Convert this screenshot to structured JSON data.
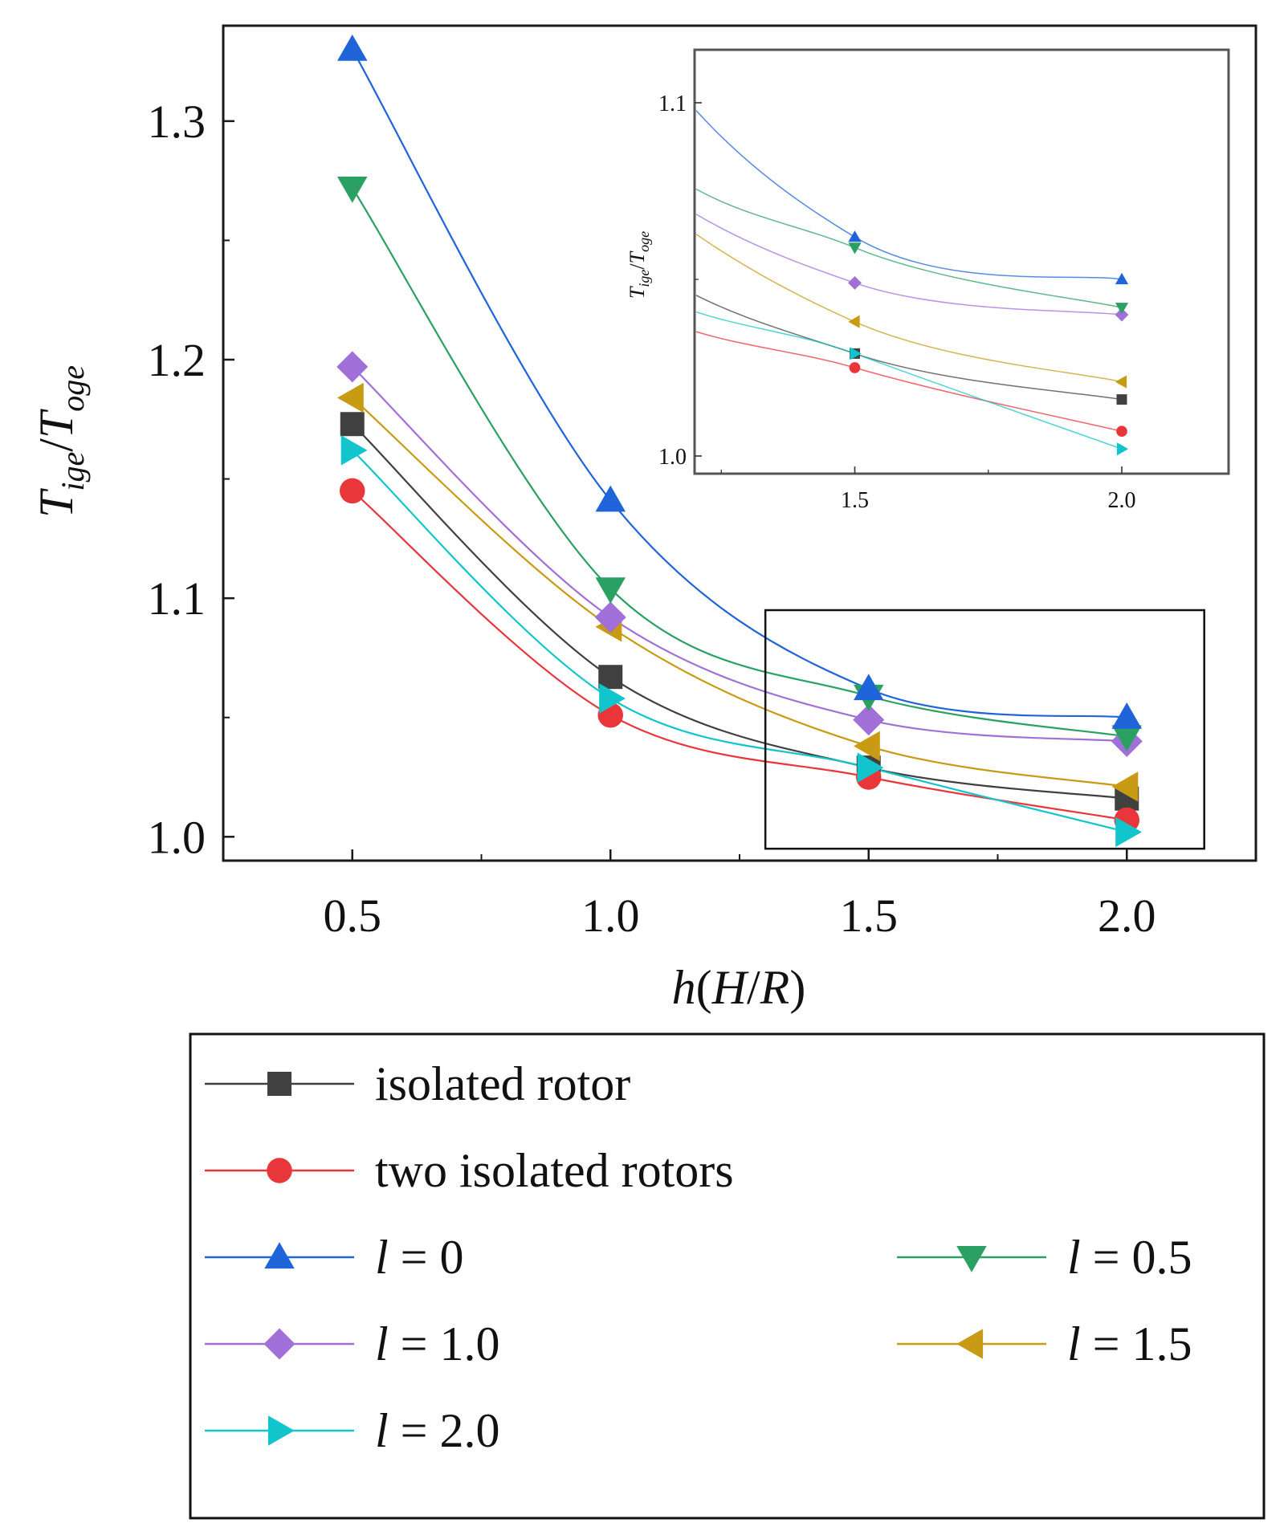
{
  "chart_data": {
    "type": "line",
    "ylabel": "T_ige/T_oge",
    "xlabel": "h(H/R)",
    "xlim": [
      0.25,
      2.25
    ],
    "ylim": [
      0.99,
      1.34
    ],
    "xticks": [
      0.5,
      1.0,
      1.5,
      2.0
    ],
    "xtick_labels": [
      "0.5",
      "1.0",
      "1.5",
      "2.0"
    ],
    "yticks": [
      1.0,
      1.1,
      1.2,
      1.3
    ],
    "ytick_labels": [
      "1.0",
      "1.1",
      "1.2",
      "1.3"
    ],
    "x": [
      0.5,
      1.0,
      1.5,
      2.0
    ],
    "series": [
      {
        "name": "isolated rotor",
        "color": "#404040",
        "marker": "square",
        "values": [
          1.173,
          1.067,
          1.029,
          1.016
        ]
      },
      {
        "name": "two isolated rotors",
        "color": "#e8363a",
        "marker": "circle",
        "values": [
          1.145,
          1.051,
          1.025,
          1.007
        ]
      },
      {
        "name": "l = 0",
        "color": "#1f64d8",
        "marker": "triangle-up",
        "values": [
          1.33,
          1.141,
          1.062,
          1.05
        ]
      },
      {
        "name": "l = 0.5",
        "color": "#2aa062",
        "marker": "triangle-down",
        "values": [
          1.272,
          1.104,
          1.059,
          1.042
        ]
      },
      {
        "name": "l = 1.0",
        "color": "#a070d8",
        "marker": "diamond",
        "values": [
          1.197,
          1.092,
          1.049,
          1.04
        ]
      },
      {
        "name": "l = 1.5",
        "color": "#c99a14",
        "marker": "triangle-left",
        "values": [
          1.184,
          1.088,
          1.038,
          1.021
        ]
      },
      {
        "name": "l = 2.0",
        "color": "#12c4cc",
        "marker": "triangle-right",
        "values": [
          1.162,
          1.058,
          1.029,
          1.002
        ]
      }
    ],
    "inset": {
      "xlim": [
        1.2,
        2.2
      ],
      "ylim": [
        0.995,
        1.115
      ],
      "xticks": [
        1.5,
        2.0
      ],
      "xtick_labels": [
        "1.5",
        "2.0"
      ],
      "yticks": [
        1.0,
        1.1
      ],
      "ytick_labels": [
        "1.0",
        "1.1"
      ],
      "ylabel": "T_ige/T_oge"
    },
    "zoom_box": {
      "x_range": [
        1.3,
        2.15
      ],
      "y_range": [
        0.995,
        1.095
      ]
    },
    "legend": {
      "placement": "below",
      "entries": [
        {
          "series": 0,
          "label": "isolated rotor",
          "italic_label": false
        },
        {
          "series": 1,
          "label": "two isolated rotors",
          "italic_label": false
        },
        {
          "series": 2,
          "label": "l = 0",
          "italic_label": true
        },
        {
          "series": 3,
          "label": "l = 0.5",
          "italic_label": true
        },
        {
          "series": 4,
          "label": "l = 1.0",
          "italic_label": true
        },
        {
          "series": 5,
          "label": "l = 1.5",
          "italic_label": true
        },
        {
          "series": 6,
          "label": "l = 2.0",
          "italic_label": true
        }
      ]
    }
  }
}
